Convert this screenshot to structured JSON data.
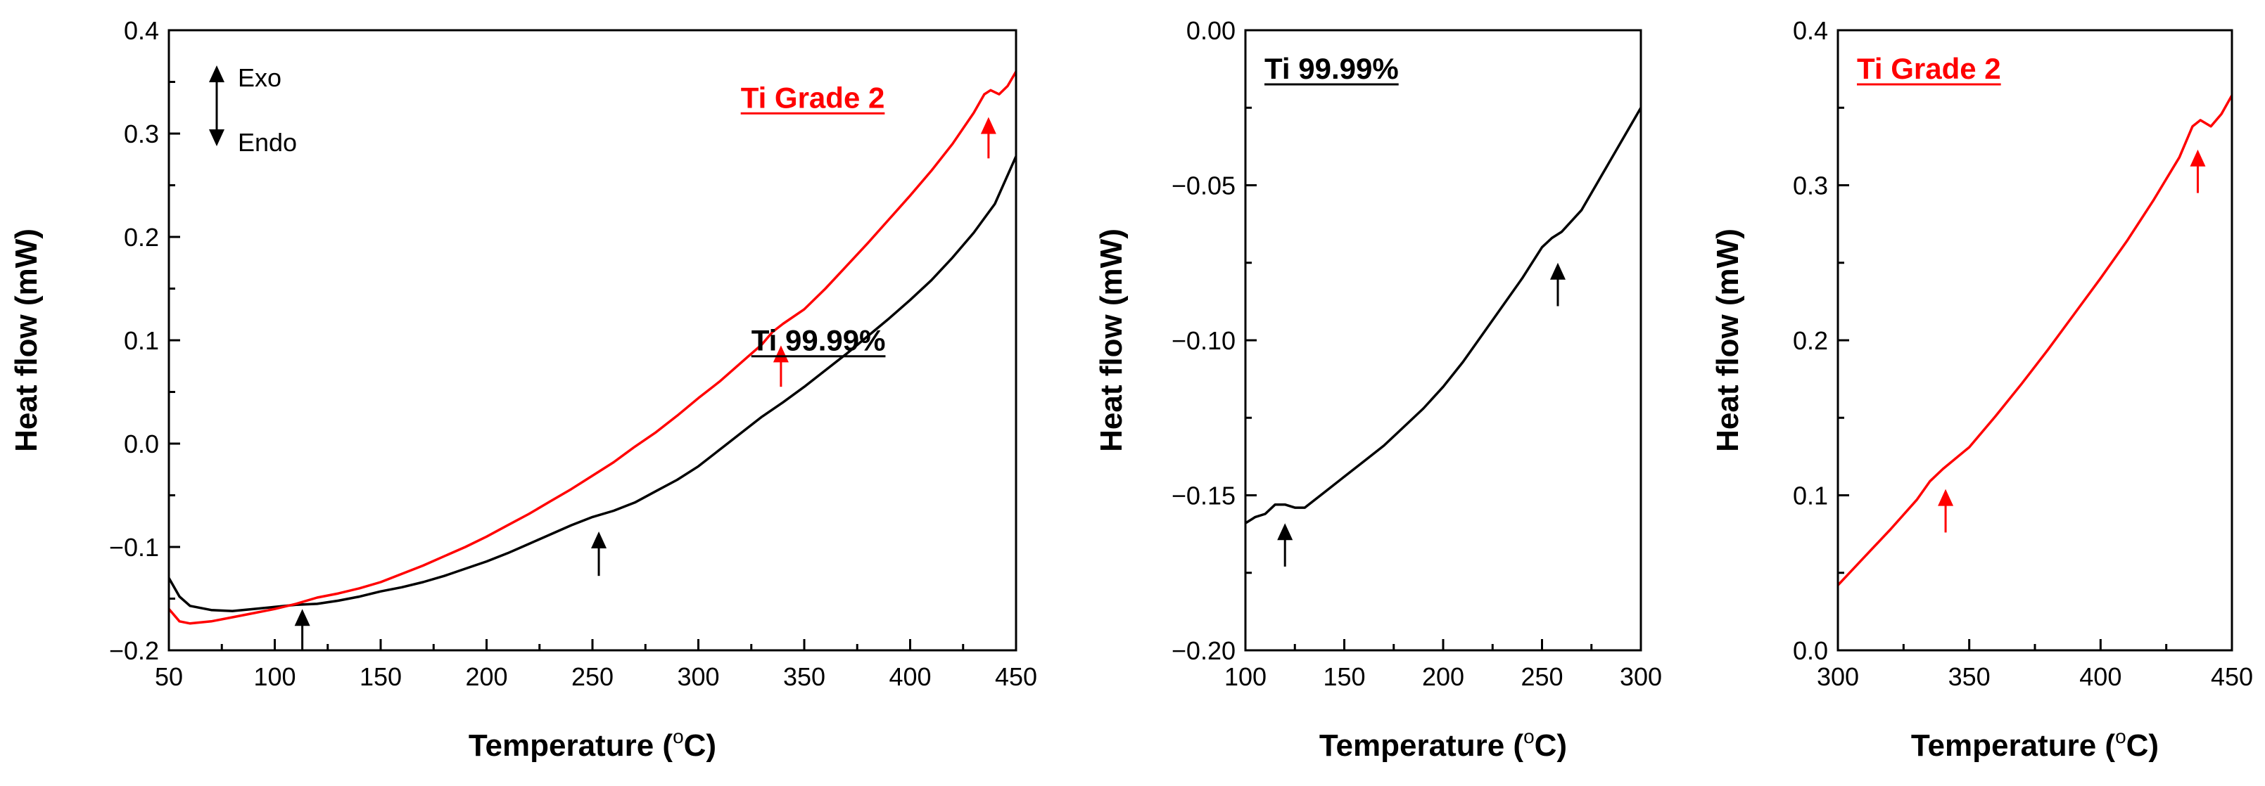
{
  "colors": {
    "ti_9999": "#000000",
    "ti_grade2": "#ff0000",
    "axis": "#000000"
  },
  "chart_data": [
    {
      "type": "line",
      "title": "",
      "xlabel_main": "Temperature (",
      "xlabel_sup": "o",
      "xlabel_end": "C)",
      "ylabel": "Heat flow (mW)",
      "xlim": [
        50,
        450
      ],
      "ylim": [
        -0.2,
        0.4
      ],
      "xticks": [
        50,
        100,
        150,
        200,
        250,
        300,
        350,
        400,
        450
      ],
      "xtick_labels": [
        "50",
        "100",
        "150",
        "200",
        "250",
        "300",
        "350",
        "400",
        "450"
      ],
      "yticks": [
        -0.2,
        -0.1,
        0.0,
        0.1,
        0.2,
        0.3,
        0.4
      ],
      "ytick_labels": [
        "−0.2",
        "−0.1",
        "0.0",
        "0.1",
        "0.2",
        "0.3",
        "0.4"
      ],
      "legend": {
        "exo": "Exo",
        "endo": "Endo",
        "position": "top-left"
      },
      "series": [
        {
          "name": "Ti 99.99%",
          "color": "#000000",
          "label_anchor": [
            325,
            0.09
          ],
          "x": [
            50,
            55,
            60,
            70,
            80,
            90,
            100,
            110,
            120,
            130,
            140,
            150,
            160,
            170,
            180,
            190,
            200,
            210,
            220,
            230,
            240,
            250,
            260,
            270,
            280,
            290,
            300,
            310,
            320,
            330,
            340,
            350,
            360,
            370,
            380,
            390,
            400,
            410,
            420,
            430,
            440,
            450
          ],
          "y": [
            -0.13,
            -0.148,
            -0.157,
            -0.161,
            -0.162,
            -0.16,
            -0.158,
            -0.156,
            -0.155,
            -0.152,
            -0.148,
            -0.143,
            -0.139,
            -0.134,
            -0.128,
            -0.121,
            -0.114,
            -0.106,
            -0.097,
            -0.088,
            -0.079,
            -0.071,
            -0.065,
            -0.057,
            -0.046,
            -0.035,
            -0.022,
            -0.006,
            0.01,
            0.026,
            0.04,
            0.055,
            0.071,
            0.087,
            0.104,
            0.121,
            0.139,
            0.158,
            0.18,
            0.204,
            0.232,
            0.278
          ]
        },
        {
          "name": "Ti Grade 2",
          "color": "#ff0000",
          "label_anchor": [
            320,
            0.325
          ],
          "x": [
            50,
            55,
            60,
            70,
            80,
            90,
            100,
            110,
            120,
            130,
            140,
            150,
            160,
            170,
            180,
            190,
            200,
            210,
            220,
            230,
            240,
            250,
            260,
            270,
            280,
            290,
            300,
            310,
            320,
            330,
            335,
            340,
            350,
            360,
            370,
            380,
            390,
            400,
            410,
            420,
            430,
            435,
            438,
            442,
            446,
            450
          ],
          "y": [
            -0.16,
            -0.172,
            -0.174,
            -0.172,
            -0.168,
            -0.164,
            -0.16,
            -0.155,
            -0.149,
            -0.145,
            -0.14,
            -0.134,
            -0.126,
            -0.118,
            -0.109,
            -0.1,
            -0.09,
            -0.079,
            -0.068,
            -0.056,
            -0.044,
            -0.031,
            -0.018,
            -0.003,
            0.011,
            0.027,
            0.044,
            0.06,
            0.078,
            0.096,
            0.108,
            0.116,
            0.13,
            0.15,
            0.172,
            0.194,
            0.217,
            0.24,
            0.264,
            0.29,
            0.32,
            0.338,
            0.342,
            0.338,
            0.346,
            0.36
          ]
        }
      ],
      "arrows": [
        {
          "x": 113,
          "y_tip": -0.16,
          "y_tail": -0.2,
          "color": "#000000"
        },
        {
          "x": 253,
          "y_tip": -0.085,
          "y_tail": -0.128,
          "color": "#000000"
        },
        {
          "x": 339,
          "y_tip": 0.095,
          "y_tail": 0.055,
          "color": "#ff0000"
        },
        {
          "x": 437,
          "y_tip": 0.316,
          "y_tail": 0.276,
          "color": "#ff0000"
        }
      ]
    },
    {
      "type": "line",
      "title": "Ti 99.99%",
      "title_color": "#000000",
      "xlabel_main": "Temperature (",
      "xlabel_sup": "o",
      "xlabel_end": "C)",
      "ylabel": "Heat flow (mW)",
      "xlim": [
        100,
        300
      ],
      "ylim": [
        -0.2,
        0.0
      ],
      "xticks": [
        100,
        150,
        200,
        250,
        300
      ],
      "xtick_labels": [
        "100",
        "150",
        "200",
        "250",
        "300"
      ],
      "yticks": [
        -0.2,
        -0.15,
        -0.1,
        -0.05,
        0.0
      ],
      "ytick_labels": [
        "−0.20",
        "−0.15",
        "−0.10",
        "−0.05",
        "0.00"
      ],
      "series": [
        {
          "name": "Ti 99.99%",
          "color": "#000000",
          "x": [
            100,
            105,
            110,
            115,
            120,
            125,
            130,
            140,
            150,
            160,
            170,
            180,
            190,
            200,
            210,
            220,
            230,
            240,
            245,
            250,
            255,
            260,
            270,
            280,
            290,
            300
          ],
          "y": [
            -0.159,
            -0.157,
            -0.156,
            -0.153,
            -0.153,
            -0.154,
            -0.154,
            -0.149,
            -0.144,
            -0.139,
            -0.134,
            -0.128,
            -0.122,
            -0.115,
            -0.107,
            -0.098,
            -0.089,
            -0.08,
            -0.075,
            -0.07,
            -0.067,
            -0.065,
            -0.058,
            -0.047,
            -0.036,
            -0.025
          ]
        }
      ],
      "arrows": [
        {
          "x": 120,
          "y_tip": -0.159,
          "y_tail": -0.173,
          "color": "#000000"
        },
        {
          "x": 258,
          "y_tip": -0.075,
          "y_tail": -0.089,
          "color": "#000000"
        }
      ]
    },
    {
      "type": "line",
      "title": "Ti Grade 2",
      "title_color": "#ff0000",
      "xlabel_main": "Temperature (",
      "xlabel_sup": "o",
      "xlabel_end": "C)",
      "ylabel": "Heat flow (mW)",
      "xlim": [
        300,
        450
      ],
      "ylim": [
        0.0,
        0.4
      ],
      "xticks": [
        300,
        350,
        400,
        450
      ],
      "xtick_labels": [
        "300",
        "350",
        "400",
        "450"
      ],
      "yticks": [
        0.0,
        0.1,
        0.2,
        0.3,
        0.4
      ],
      "ytick_labels": [
        "0.0",
        "0.1",
        "0.2",
        "0.3",
        "0.4"
      ],
      "series": [
        {
          "name": "Ti Grade 2",
          "color": "#ff0000",
          "x": [
            300,
            310,
            320,
            330,
            335,
            340,
            350,
            360,
            370,
            380,
            390,
            400,
            410,
            420,
            430,
            435,
            438,
            442,
            446,
            450
          ],
          "y": [
            0.042,
            0.06,
            0.078,
            0.097,
            0.109,
            0.117,
            0.131,
            0.151,
            0.172,
            0.194,
            0.217,
            0.24,
            0.264,
            0.29,
            0.318,
            0.338,
            0.342,
            0.338,
            0.346,
            0.358
          ]
        }
      ],
      "arrows": [
        {
          "x": 341,
          "y_tip": 0.104,
          "y_tail": 0.076,
          "color": "#ff0000"
        },
        {
          "x": 437,
          "y_tip": 0.323,
          "y_tail": 0.295,
          "color": "#ff0000"
        }
      ]
    }
  ]
}
